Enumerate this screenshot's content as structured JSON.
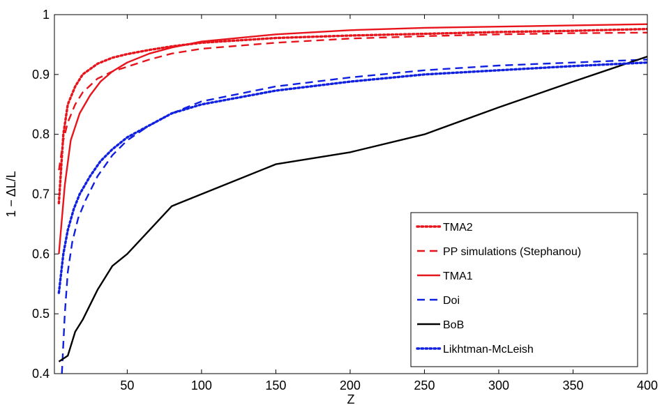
{
  "chart_data": {
    "type": "line",
    "title": "",
    "xlabel": "Z",
    "ylabel": "1 − ΔL/L",
    "xlim": [
      1,
      400
    ],
    "ylim": [
      0.4,
      1.0
    ],
    "xticks": [
      50,
      100,
      150,
      200,
      250,
      300,
      350,
      400
    ],
    "yticks": [
      0.4,
      0.5,
      0.6,
      0.7,
      0.8,
      0.9,
      1.0
    ],
    "ytick_labels": [
      "0.4",
      "0.5",
      "0.6",
      "0.7",
      "0.8",
      "0.9",
      "1"
    ],
    "grid": false,
    "legend_position": "bottom-right",
    "series": [
      {
        "name": "TMA2",
        "color": "#e8141c",
        "dash": "dotted",
        "x": [
          4,
          7,
          10,
          15,
          20,
          30,
          40,
          50,
          65,
          80,
          100,
          150,
          200,
          250,
          300,
          350,
          400
        ],
        "y": [
          0.685,
          0.8,
          0.85,
          0.88,
          0.9,
          0.918,
          0.928,
          0.934,
          0.941,
          0.947,
          0.953,
          0.961,
          0.965,
          0.968,
          0.971,
          0.973,
          0.976
        ]
      },
      {
        "name": "PP simulations (Stephanou)",
        "color": "#e8141c",
        "dash": "dashed",
        "x": [
          4,
          7,
          10,
          15,
          20,
          30,
          40,
          50,
          65,
          80,
          100,
          150,
          200,
          250,
          300,
          350,
          400
        ],
        "y": [
          0.74,
          0.79,
          0.82,
          0.85,
          0.87,
          0.893,
          0.905,
          0.913,
          0.925,
          0.935,
          0.943,
          0.953,
          0.96,
          0.964,
          0.967,
          0.969,
          0.97
        ]
      },
      {
        "name": "TMA1",
        "color": "#e8141c",
        "dash": "solid",
        "x": [
          4,
          8,
          12,
          18,
          25,
          32,
          40,
          50,
          65,
          80,
          100,
          150,
          200,
          250,
          300,
          350,
          400
        ],
        "y": [
          0.6,
          0.715,
          0.79,
          0.835,
          0.865,
          0.888,
          0.905,
          0.92,
          0.935,
          0.945,
          0.955,
          0.967,
          0.974,
          0.978,
          0.98,
          0.982,
          0.984
        ]
      },
      {
        "name": "Doi",
        "color": "#1020e0",
        "dash": "dashed",
        "x": [
          6,
          8,
          10,
          13,
          17,
          22,
          30,
          40,
          50,
          65,
          80,
          100,
          150,
          200,
          250,
          300,
          350,
          400
        ],
        "y": [
          0.4,
          0.5,
          0.57,
          0.62,
          0.66,
          0.69,
          0.73,
          0.765,
          0.79,
          0.815,
          0.835,
          0.855,
          0.88,
          0.895,
          0.907,
          0.915,
          0.92,
          0.925
        ]
      },
      {
        "name": "BoB",
        "color": "#000000",
        "dash": "solid",
        "x": [
          4,
          10,
          15,
          20,
          30,
          40,
          50,
          80,
          100,
          150,
          200,
          250,
          300,
          350,
          400
        ],
        "y": [
          0.42,
          0.43,
          0.47,
          0.49,
          0.54,
          0.58,
          0.6,
          0.68,
          0.7,
          0.75,
          0.77,
          0.8,
          0.845,
          0.888,
          0.93
        ]
      },
      {
        "name": "Likhtman-McLeish",
        "color": "#1020e0",
        "dash": "dotted",
        "x": [
          4,
          7,
          10,
          14,
          18,
          25,
          32,
          40,
          50,
          65,
          80,
          100,
          150,
          200,
          250,
          300,
          350,
          400
        ],
        "y": [
          0.535,
          0.6,
          0.64,
          0.675,
          0.7,
          0.73,
          0.755,
          0.775,
          0.795,
          0.815,
          0.835,
          0.85,
          0.873,
          0.888,
          0.9,
          0.907,
          0.914,
          0.92
        ]
      }
    ]
  }
}
